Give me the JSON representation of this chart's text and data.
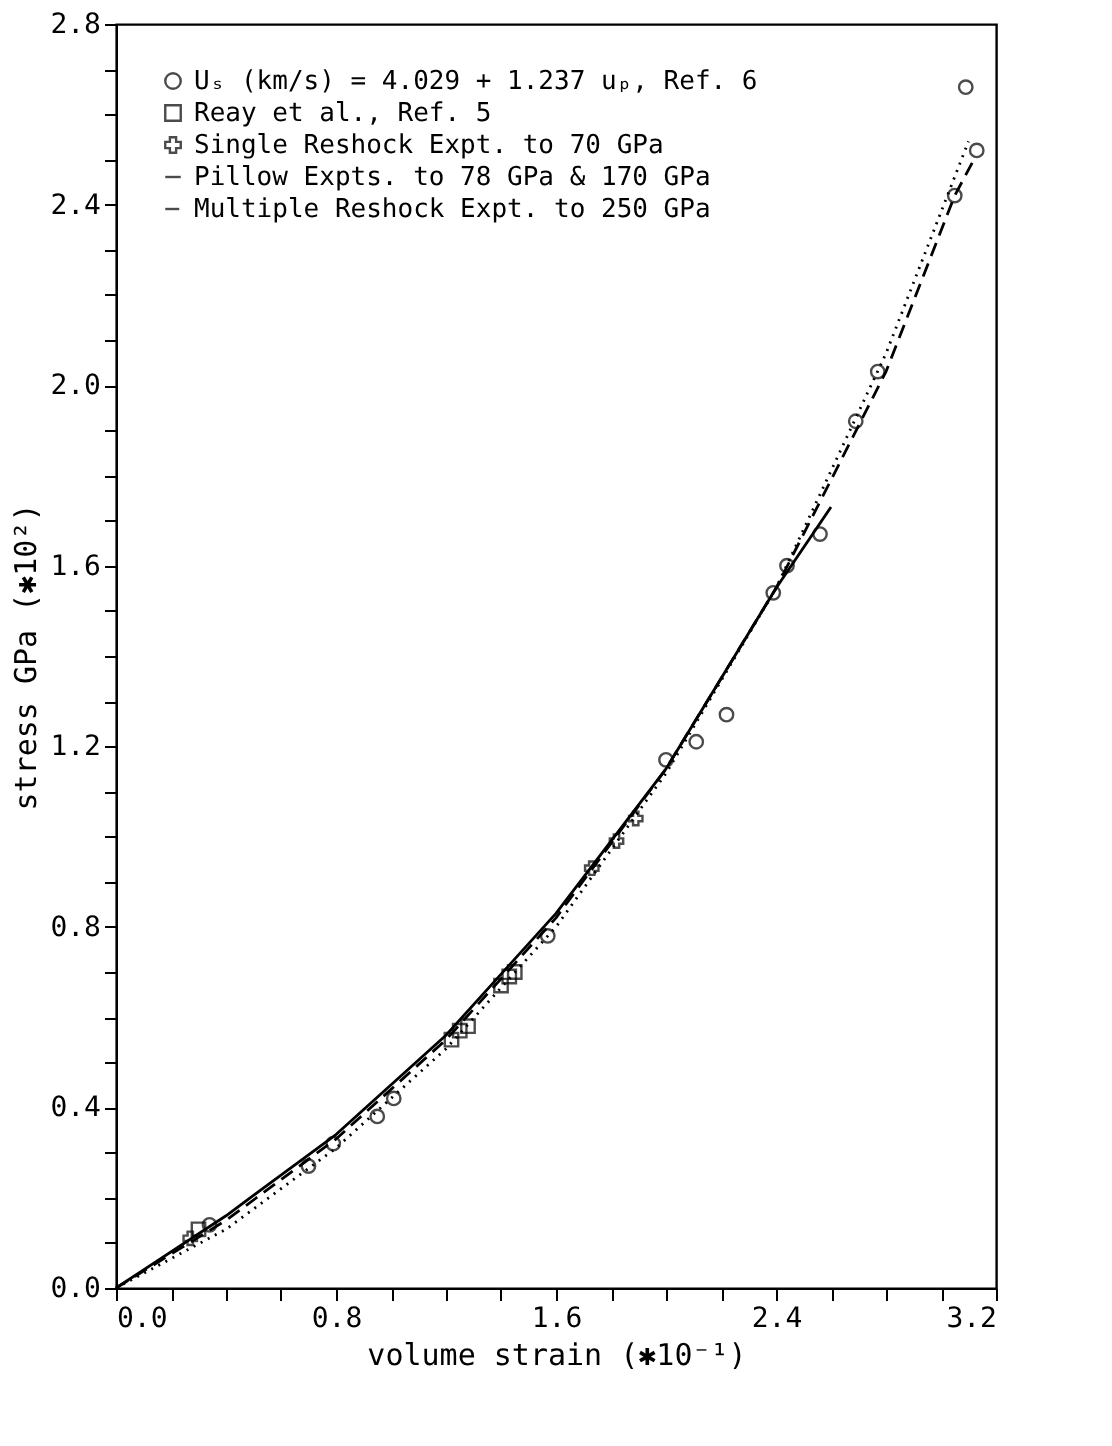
{
  "chart_data": {
    "type": "scatter",
    "xlabel": "volume   strain  (✱10⁻¹)",
    "ylabel": "stress   GPa (✱10²)",
    "xlim": [
      0,
      3.2
    ],
    "ylim": [
      0,
      2.8
    ],
    "xticks": [
      {
        "value": 0,
        "label": "0.0"
      },
      {
        "value": 0.2,
        "label": null
      },
      {
        "value": 0.4,
        "label": null
      },
      {
        "value": 0.6,
        "label": null
      },
      {
        "value": 0.8,
        "label": "0.8"
      },
      {
        "value": 1.0,
        "label": null
      },
      {
        "value": 1.2,
        "label": null
      },
      {
        "value": 1.4,
        "label": null
      },
      {
        "value": 1.6,
        "label": "1.6"
      },
      {
        "value": 1.8,
        "label": null
      },
      {
        "value": 2.0,
        "label": null
      },
      {
        "value": 2.2,
        "label": null
      },
      {
        "value": 2.4,
        "label": "2.4"
      },
      {
        "value": 2.6,
        "label": null
      },
      {
        "value": 2.8,
        "label": null
      },
      {
        "value": 3.0,
        "label": null
      },
      {
        "value": 3.2,
        "label": "3.2"
      }
    ],
    "yticks": [
      {
        "value": 0,
        "label": "0.0"
      },
      {
        "value": 0.1,
        "label": null
      },
      {
        "value": 0.2,
        "label": null
      },
      {
        "value": 0.3,
        "label": null
      },
      {
        "value": 0.4,
        "label": "0.4"
      },
      {
        "value": 0.5,
        "label": null
      },
      {
        "value": 0.6,
        "label": null
      },
      {
        "value": 0.7,
        "label": null
      },
      {
        "value": 0.8,
        "label": "0.8"
      },
      {
        "value": 0.9,
        "label": null
      },
      {
        "value": 1.0,
        "label": null
      },
      {
        "value": 1.1,
        "label": null
      },
      {
        "value": 1.2,
        "label": "1.2"
      },
      {
        "value": 1.3,
        "label": null
      },
      {
        "value": 1.4,
        "label": null
      },
      {
        "value": 1.5,
        "label": null
      },
      {
        "value": 1.6,
        "label": "1.6"
      },
      {
        "value": 1.7,
        "label": null
      },
      {
        "value": 1.8,
        "label": null
      },
      {
        "value": 1.9,
        "label": null
      },
      {
        "value": 2.0,
        "label": "2.0"
      },
      {
        "value": 2.1,
        "label": null
      },
      {
        "value": 2.2,
        "label": null
      },
      {
        "value": 2.3,
        "label": null
      },
      {
        "value": 2.4,
        "label": "2.4"
      },
      {
        "value": 2.5,
        "label": null
      },
      {
        "value": 2.6,
        "label": null
      },
      {
        "value": 2.7,
        "label": null
      },
      {
        "value": 2.8,
        "label": "2.8"
      }
    ],
    "grid": false,
    "legend": "top left",
    "series": [
      {
        "name": "Uₛ (km/s) = 4.029 + 1.237 uₚ, Ref. 6",
        "type": "scatter",
        "marker": "circle",
        "color": "#000000",
        "x": [
          0.34,
          0.7,
          0.79,
          0.95,
          1.01,
          1.57,
          2.0,
          2.11,
          2.22,
          2.39,
          2.44,
          2.56,
          2.69,
          2.77,
          3.05,
          3.13,
          3.09
        ],
        "values": [
          0.14,
          0.27,
          0.32,
          0.38,
          0.42,
          0.78,
          1.17,
          1.21,
          1.27,
          1.54,
          1.6,
          1.67,
          1.92,
          2.03,
          2.42,
          2.52,
          2.66
        ]
      },
      {
        "name": "Reay et al., Ref. 5",
        "type": "scatter",
        "marker": "square",
        "color": "#000000",
        "x": [
          0.3,
          1.22,
          1.25,
          1.28,
          1.4,
          1.43,
          1.45
        ],
        "values": [
          0.13,
          0.55,
          0.57,
          0.58,
          0.67,
          0.69,
          0.7
        ]
      },
      {
        "name": "Single Reshock Expt. to 70 GPa",
        "type": "scatter",
        "marker": "cross",
        "color": "#000000",
        "x": [
          0.27,
          1.73,
          1.82,
          1.89
        ],
        "values": [
          0.11,
          0.93,
          0.99,
          1.04
        ]
      },
      {
        "name": "Pillow Expts. to 78 GPa & 170 GPa",
        "type": "line",
        "line_style": "solid",
        "marker": "none",
        "color": "#000000",
        "x": [
          0,
          0.4,
          0.8,
          1.2,
          1.6,
          2.0,
          2.4,
          2.6
        ],
        "values": [
          0,
          0.16,
          0.34,
          0.56,
          0.83,
          1.15,
          1.55,
          1.73
        ]
      },
      {
        "name": "Multiple Reshock Expt. to 250 GPa",
        "type": "line",
        "line_style": "dashed",
        "marker": "none",
        "color": "#000000",
        "x": [
          0,
          0.4,
          0.8,
          1.2,
          1.6,
          2.0,
          2.4,
          2.8,
          3.05,
          3.12
        ],
        "values": [
          0,
          0.15,
          0.33,
          0.55,
          0.82,
          1.15,
          1.55,
          2.03,
          2.42,
          2.5
        ]
      },
      {
        "type": "line",
        "line_style": "dotted",
        "marker": "none",
        "color": "#000000",
        "x": [
          0,
          0.4,
          0.8,
          1.2,
          1.6,
          2.0,
          2.4,
          2.8,
          3.1
        ],
        "values": [
          0,
          0.13,
          0.31,
          0.53,
          0.8,
          1.14,
          1.55,
          2.07,
          2.54
        ]
      }
    ]
  }
}
